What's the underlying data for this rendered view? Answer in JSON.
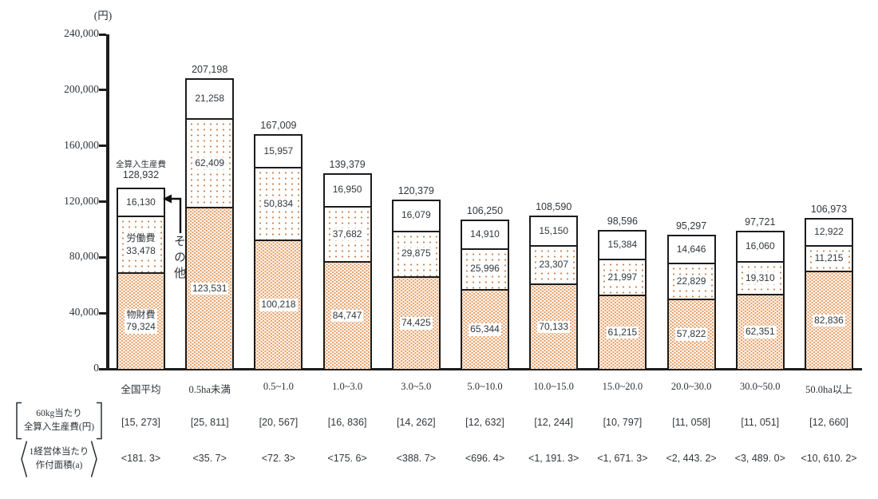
{
  "chart_data": {
    "type": "bar",
    "stacked": true,
    "y_axis": {
      "unit": "(円)",
      "min": 0,
      "max": 240000,
      "tick_interval": 40000,
      "tick_labels": [
        "0",
        "40,000",
        "80,000",
        "120,000",
        "160,000",
        "200,000",
        "240,000"
      ],
      "grid": false
    },
    "categories": [
      "全国平均",
      "0.5ha未満",
      "0.5~1.0",
      "1.0~3.0",
      "3.0~5.0",
      "5.0~10.0",
      "10.0~15.0",
      "15.0~20.0",
      "20.0~30.0",
      "30.0~50.0",
      "50.0ha以上"
    ],
    "series": [
      {
        "name": "物財費",
        "key": "material",
        "values": [
          79324,
          123531,
          100218,
          84747,
          74425,
          65344,
          70133,
          61215,
          57822,
          62351,
          82836
        ],
        "labels": [
          "79,324",
          "123,531",
          "100,218",
          "84,747",
          "74,425",
          "65,344",
          "70,133",
          "61,215",
          "57,822",
          "62,351",
          "82,836"
        ]
      },
      {
        "name": "労働費",
        "key": "labor",
        "values": [
          33478,
          62409,
          50834,
          37682,
          29875,
          25996,
          23307,
          21997,
          22829,
          19310,
          11215
        ],
        "labels": [
          "33,478",
          "62,409",
          "50,834",
          "37,682",
          "29,875",
          "25,996",
          "23,307",
          "21,997",
          "22,829",
          "19,310",
          "11,215"
        ]
      },
      {
        "name": "その他",
        "key": "other",
        "values": [
          16130,
          21258,
          15957,
          16950,
          16079,
          14910,
          15150,
          15384,
          14646,
          16060,
          12922
        ],
        "labels": [
          "16,130",
          "21,258",
          "15,957",
          "16,950",
          "16,079",
          "14,910",
          "15,150",
          "15,384",
          "14,646",
          "16,060",
          "12,922"
        ]
      }
    ],
    "totals": {
      "label": "全算入生産費",
      "values": [
        128932,
        207198,
        167009,
        139379,
        120379,
        106250,
        108590,
        98596,
        95297,
        97721,
        106973
      ],
      "labels": [
        "128,932",
        "207,198",
        "167,009",
        "139,379",
        "120,379",
        "106,250",
        "108,590",
        "98,596",
        "95,297",
        "97,721",
        "106,973"
      ]
    },
    "annotations": {
      "other_label": "その他"
    },
    "table_rows": [
      {
        "header_lines": [
          "60kg当たり",
          "全算入生産費(円)"
        ],
        "bracket": "square",
        "values": [
          "15, 273",
          "25, 811",
          "20, 567",
          "16, 836",
          "14, 262",
          "12, 632",
          "12, 244",
          "10, 797",
          "11, 058",
          "11, 051",
          "12, 660"
        ]
      },
      {
        "header_lines": [
          "1経営体当たり",
          "作付面積(a)"
        ],
        "bracket": "angle",
        "values": [
          "181. 3",
          "35. 7",
          "72. 3",
          "175. 6",
          "388. 7",
          "696. 4",
          "1, 191. 3",
          "1, 671. 3",
          "2, 443. 2",
          "3, 489. 0",
          "10, 610. 2"
        ]
      }
    ],
    "colors": {
      "dot_dense": "#e69c62",
      "dot_sparse": "#cf7f45",
      "border": "#1c1c1c",
      "text": "#32373c"
    }
  }
}
